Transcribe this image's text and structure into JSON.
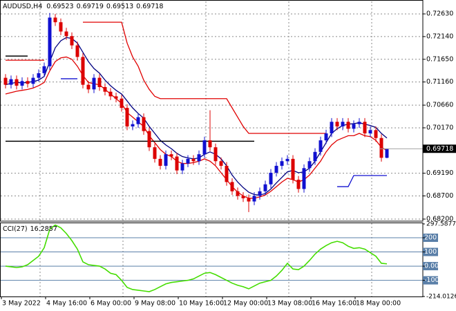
{
  "chart_data": {
    "type": "candlestick",
    "symbol": "AUDUSD,H4",
    "up_color": "#1010d0",
    "down_color": "#dc0000",
    "grid": true,
    "categories": [
      "3 May 2022",
      null,
      null,
      null,
      null,
      null,
      null,
      null,
      "4 May 16:00",
      null,
      null,
      null,
      null,
      null,
      null,
      null,
      "6 May 00:00",
      null,
      null,
      null,
      null,
      null,
      null,
      null,
      "9 May 08:00",
      null,
      null,
      null,
      null,
      null,
      null,
      null,
      "10 May 16:00",
      null,
      null,
      null,
      null,
      null,
      null,
      null,
      "12 May 00:00",
      null,
      null,
      null,
      null,
      null,
      null,
      null,
      "13 May 08:00",
      null,
      null,
      null,
      null,
      null,
      null,
      null,
      "16 May 16:00",
      null,
      null,
      null,
      null,
      null,
      null,
      null,
      "18 May 00:00",
      null,
      null,
      null,
      null,
      null
    ],
    "open": [
      0.7125,
      0.711,
      0.7122,
      0.7108,
      0.7118,
      0.7112,
      0.7125,
      0.7135,
      0.715,
      0.7255,
      0.7245,
      0.7225,
      0.7215,
      0.7195,
      0.717,
      0.711,
      0.71,
      0.7125,
      0.7105,
      0.7095,
      0.7085,
      0.708,
      0.706,
      0.702,
      0.7025,
      0.704,
      0.701,
      0.6975,
      0.695,
      0.6935,
      0.696,
      0.6955,
      0.6925,
      0.694,
      0.695,
      0.6945,
      0.696,
      0.699,
      0.6975,
      0.6945,
      0.6935,
      0.69,
      0.688,
      0.687,
      0.6865,
      0.6858,
      0.687,
      0.688,
      0.6895,
      0.692,
      0.6935,
      0.6945,
      0.695,
      0.6905,
      0.6885,
      0.693,
      0.6945,
      0.6965,
      0.699,
      0.7005,
      0.703,
      0.702,
      0.703,
      0.7015,
      0.7025,
      0.703,
      0.7005,
      0.7012,
      0.6995,
      0.69523
    ],
    "high": [
      0.7133,
      0.713,
      0.713,
      0.7126,
      0.7126,
      0.7133,
      0.7143,
      0.7158,
      0.7265,
      0.7263,
      0.7253,
      0.7233,
      0.7223,
      0.7203,
      0.7178,
      0.7118,
      0.7133,
      0.7133,
      0.7113,
      0.7103,
      0.7093,
      0.7088,
      0.7068,
      0.7033,
      0.7048,
      0.7048,
      0.7018,
      0.6983,
      0.6958,
      0.6968,
      0.6968,
      0.6963,
      0.6948,
      0.6958,
      0.6958,
      0.6968,
      0.6998,
      0.7055,
      0.6983,
      0.6953,
      0.6943,
      0.6908,
      0.6888,
      0.6878,
      0.6873,
      0.6878,
      0.6888,
      0.6903,
      0.6928,
      0.6943,
      0.6953,
      0.6958,
      0.6958,
      0.6913,
      0.6938,
      0.6953,
      0.6973,
      0.6998,
      0.7013,
      0.7038,
      0.7038,
      0.7038,
      0.7038,
      0.7033,
      0.7038,
      0.7038,
      0.702,
      0.702,
      0.7003,
      0.69719
    ],
    "low": [
      0.7102,
      0.7102,
      0.71,
      0.71,
      0.7104,
      0.7104,
      0.7117,
      0.7127,
      0.7142,
      0.7237,
      0.7217,
      0.7207,
      0.7187,
      0.7162,
      0.7102,
      0.7092,
      0.7092,
      0.7097,
      0.7087,
      0.7077,
      0.7072,
      0.7052,
      0.7012,
      0.7012,
      0.7017,
      0.7002,
      0.6967,
      0.6942,
      0.6927,
      0.6927,
      0.6947,
      0.6917,
      0.6917,
      0.6932,
      0.6937,
      0.6937,
      0.6952,
      0.6967,
      0.6937,
      0.6927,
      0.6892,
      0.6872,
      0.6862,
      0.6857,
      0.6835,
      0.685,
      0.6862,
      0.6872,
      0.6887,
      0.6912,
      0.6927,
      0.6937,
      0.6897,
      0.6877,
      0.6877,
      0.6922,
      0.6937,
      0.6957,
      0.6982,
      0.6997,
      0.7012,
      0.7012,
      0.7007,
      0.7007,
      0.7017,
      0.6997,
      0.6997,
      0.6987,
      0.6944,
      0.69513
    ],
    "close": [
      0.711,
      0.7122,
      0.7108,
      0.7118,
      0.7112,
      0.7125,
      0.7135,
      0.715,
      0.7255,
      0.7245,
      0.7225,
      0.7215,
      0.7195,
      0.717,
      0.711,
      0.71,
      0.7125,
      0.7105,
      0.7095,
      0.7085,
      0.708,
      0.706,
      0.702,
      0.7025,
      0.704,
      0.701,
      0.6975,
      0.695,
      0.6935,
      0.696,
      0.6955,
      0.6925,
      0.694,
      0.695,
      0.6945,
      0.696,
      0.699,
      0.6975,
      0.6945,
      0.6935,
      0.69,
      0.688,
      0.687,
      0.6865,
      0.6858,
      0.687,
      0.688,
      0.6895,
      0.692,
      0.6935,
      0.6945,
      0.695,
      0.6905,
      0.6885,
      0.693,
      0.6945,
      0.6965,
      0.699,
      0.7005,
      0.703,
      0.702,
      0.703,
      0.7015,
      0.7025,
      0.703,
      0.7005,
      0.7012,
      0.6995,
      0.69523,
      0.69718
    ],
    "ylim": [
      0.6817,
      0.729
    ],
    "yticks": [
      {
        "value": 0.7263,
        "label": "0.72630"
      },
      {
        "value": 0.7214,
        "label": "0.72140"
      },
      {
        "value": 0.7165,
        "label": "0.71650"
      },
      {
        "value": 0.7116,
        "label": "0.71160"
      },
      {
        "value": 0.7066,
        "label": "0.70660"
      },
      {
        "value": 0.7017,
        "label": "0.70170"
      },
      {
        "value": 0.6919,
        "label": "0.69190"
      },
      {
        "value": 0.687,
        "label": "0.68700"
      },
      {
        "value": 0.682,
        "label": "0.68200"
      }
    ],
    "overlays": [
      {
        "color": "#000080",
        "values": [
          0.711,
          0.7113,
          0.7115,
          0.7114,
          0.7115,
          0.7117,
          0.712,
          0.7128,
          0.716,
          0.719,
          0.7205,
          0.7212,
          0.721,
          0.72,
          0.718,
          0.716,
          0.7145,
          0.7135,
          0.712,
          0.7108,
          0.7098,
          0.709,
          0.7075,
          0.706,
          0.7048,
          0.7038,
          0.702,
          0.7005,
          0.699,
          0.698,
          0.6972,
          0.6962,
          0.6955,
          0.6952,
          0.695,
          0.6952,
          0.696,
          0.6965,
          0.696,
          0.695,
          0.6935,
          0.6915,
          0.69,
          0.6888,
          0.6878,
          0.6873,
          0.6872,
          0.6875,
          0.6885,
          0.6898,
          0.691,
          0.6922,
          0.6925,
          0.692,
          0.6922,
          0.693,
          0.6945,
          0.6965,
          0.6985,
          0.7005,
          0.7015,
          0.7022,
          0.7025,
          0.7026,
          0.7028,
          0.7025,
          0.7022,
          0.7018,
          0.7005,
          0.6995
        ]
      },
      {
        "color": "#e00000",
        "values": [
          0.709,
          0.7093,
          0.7096,
          0.7098,
          0.71,
          0.7103,
          0.7108,
          0.7115,
          0.714,
          0.716,
          0.7168,
          0.717,
          0.7165,
          0.715,
          0.713,
          0.7115,
          0.7112,
          0.711,
          0.71,
          0.709,
          0.708,
          0.707,
          0.705,
          0.704,
          0.703,
          0.702,
          0.7,
          0.6985,
          0.697,
          0.696,
          0.6955,
          0.6945,
          0.694,
          0.694,
          0.6942,
          0.6945,
          0.695,
          0.6945,
          0.6935,
          0.692,
          0.6905,
          0.689,
          0.6878,
          0.687,
          0.6865,
          0.6865,
          0.6868,
          0.6872,
          0.688,
          0.689,
          0.69,
          0.6908,
          0.6905,
          0.69,
          0.6905,
          0.6915,
          0.693,
          0.6945,
          0.6965,
          0.698,
          0.699,
          0.6995,
          0.7,
          0.7,
          0.7005,
          0.7,
          0.6998,
          0.699,
          0.6975,
          0.6968
        ]
      },
      {
        "color": "#e00000",
        "values": [
          0.7163,
          0.7163,
          0.7163,
          0.7163,
          0.7163,
          0.7163,
          0.7163,
          0.7163,
          null,
          null,
          null,
          null,
          null,
          null,
          0.7245,
          0.7245,
          0.7245,
          0.7245,
          0.7245,
          0.7245,
          0.7245,
          0.7245,
          0.72,
          0.717,
          0.715,
          0.712,
          0.71,
          0.7085,
          0.708,
          0.708,
          0.708,
          0.708,
          0.708,
          0.708,
          0.708,
          0.708,
          0.708,
          0.708,
          0.708,
          0.708,
          0.708,
          0.706,
          0.704,
          0.702,
          0.7005,
          0.7005,
          0.7005,
          0.7005,
          0.7005,
          0.7005,
          0.7005,
          0.7005,
          0.7005,
          0.7005,
          0.7005,
          0.7005,
          0.7005,
          0.7005,
          0.7005,
          null,
          null,
          null,
          null,
          null,
          null,
          null,
          null,
          null,
          null,
          null
        ]
      },
      {
        "color": "#1010d0",
        "values": [
          null,
          null,
          null,
          null,
          null,
          null,
          null,
          null,
          null,
          null,
          0.7123,
          0.7123,
          0.7123,
          0.7123,
          null,
          null,
          null,
          null,
          null,
          null,
          null,
          null,
          null,
          null,
          null,
          null,
          null,
          null,
          null,
          null,
          null,
          null,
          null,
          null,
          null,
          null,
          null,
          null,
          null,
          null,
          null,
          null,
          null,
          null,
          null,
          null,
          null,
          null,
          null,
          null,
          null,
          null,
          null,
          null,
          null,
          null,
          null,
          null,
          null,
          null,
          0.689,
          0.689,
          0.689,
          0.6914,
          0.6914,
          0.6914,
          0.6914,
          0.6914,
          0.6914,
          0.6914
        ]
      },
      {
        "color": "#000000",
        "values": [
          0.7172,
          0.7172,
          0.7172,
          0.7172,
          0.7172,
          null,
          null,
          null,
          null,
          null,
          null,
          null,
          null,
          null,
          null,
          null,
          null,
          null,
          null,
          null,
          null,
          null,
          null,
          null,
          null,
          null,
          null,
          null,
          null,
          null,
          null,
          null,
          null,
          null,
          null,
          null,
          null,
          null,
          null,
          null,
          null,
          null,
          null,
          null,
          null,
          null,
          null,
          null,
          null,
          null,
          null,
          null,
          null,
          null,
          null,
          null,
          null,
          null,
          null,
          null,
          null,
          null,
          null,
          null,
          null,
          null,
          null,
          null,
          null,
          null
        ]
      },
      {
        "color": "#000000",
        "values": [
          0.6988,
          0.6988,
          0.6988,
          0.6988,
          0.6988,
          0.6988,
          0.6988,
          0.6988,
          0.6988,
          0.6988,
          0.6988,
          0.6988,
          0.6988,
          0.6988,
          0.6988,
          0.6988,
          0.6988,
          0.6988,
          0.6988,
          0.6988,
          0.6988,
          0.6988,
          0.6988,
          0.6988,
          0.6988,
          0.6988,
          0.6988,
          0.6988,
          0.6988,
          0.6988,
          0.6988,
          0.6988,
          0.6988,
          0.6988,
          0.6988,
          0.6988,
          0.6988,
          0.6988,
          0.6988,
          0.6988,
          0.6988,
          0.6988,
          0.6988,
          0.6988,
          0.6988,
          0.6988,
          null,
          null,
          null,
          null,
          null,
          null,
          null,
          null,
          null,
          null,
          null,
          null,
          null,
          null,
          null,
          null,
          null,
          null,
          null,
          null,
          null,
          null,
          null,
          null
        ]
      }
    ],
    "indicator": {
      "type": "line",
      "label": "CCI(27)",
      "color": "#44dd00",
      "values": [
        0,
        -5,
        -10,
        -5,
        10,
        40,
        70,
        130,
        260,
        290,
        270,
        230,
        180,
        120,
        30,
        10,
        5,
        0,
        -20,
        -50,
        -60,
        -100,
        -150,
        -165,
        -170,
        -175,
        -180,
        -165,
        -145,
        -125,
        -115,
        -110,
        -105,
        -100,
        -90,
        -70,
        -50,
        -45,
        -60,
        -80,
        -100,
        -120,
        -135,
        -145,
        -160,
        -140,
        -120,
        -110,
        -100,
        -70,
        -30,
        20,
        -20,
        -25,
        0,
        40,
        85,
        120,
        145,
        165,
        175,
        165,
        140,
        125,
        130,
        120,
        95,
        70,
        20,
        16.2857
      ],
      "ylim": [
        -214.0126,
        297.5877
      ],
      "yticks": [
        297.5877,
        200,
        100,
        {
          "value": 0,
          "label": "0.00"
        },
        -100,
        -214.0126
      ],
      "levels_color": "#5a7fa8"
    }
  }
}
